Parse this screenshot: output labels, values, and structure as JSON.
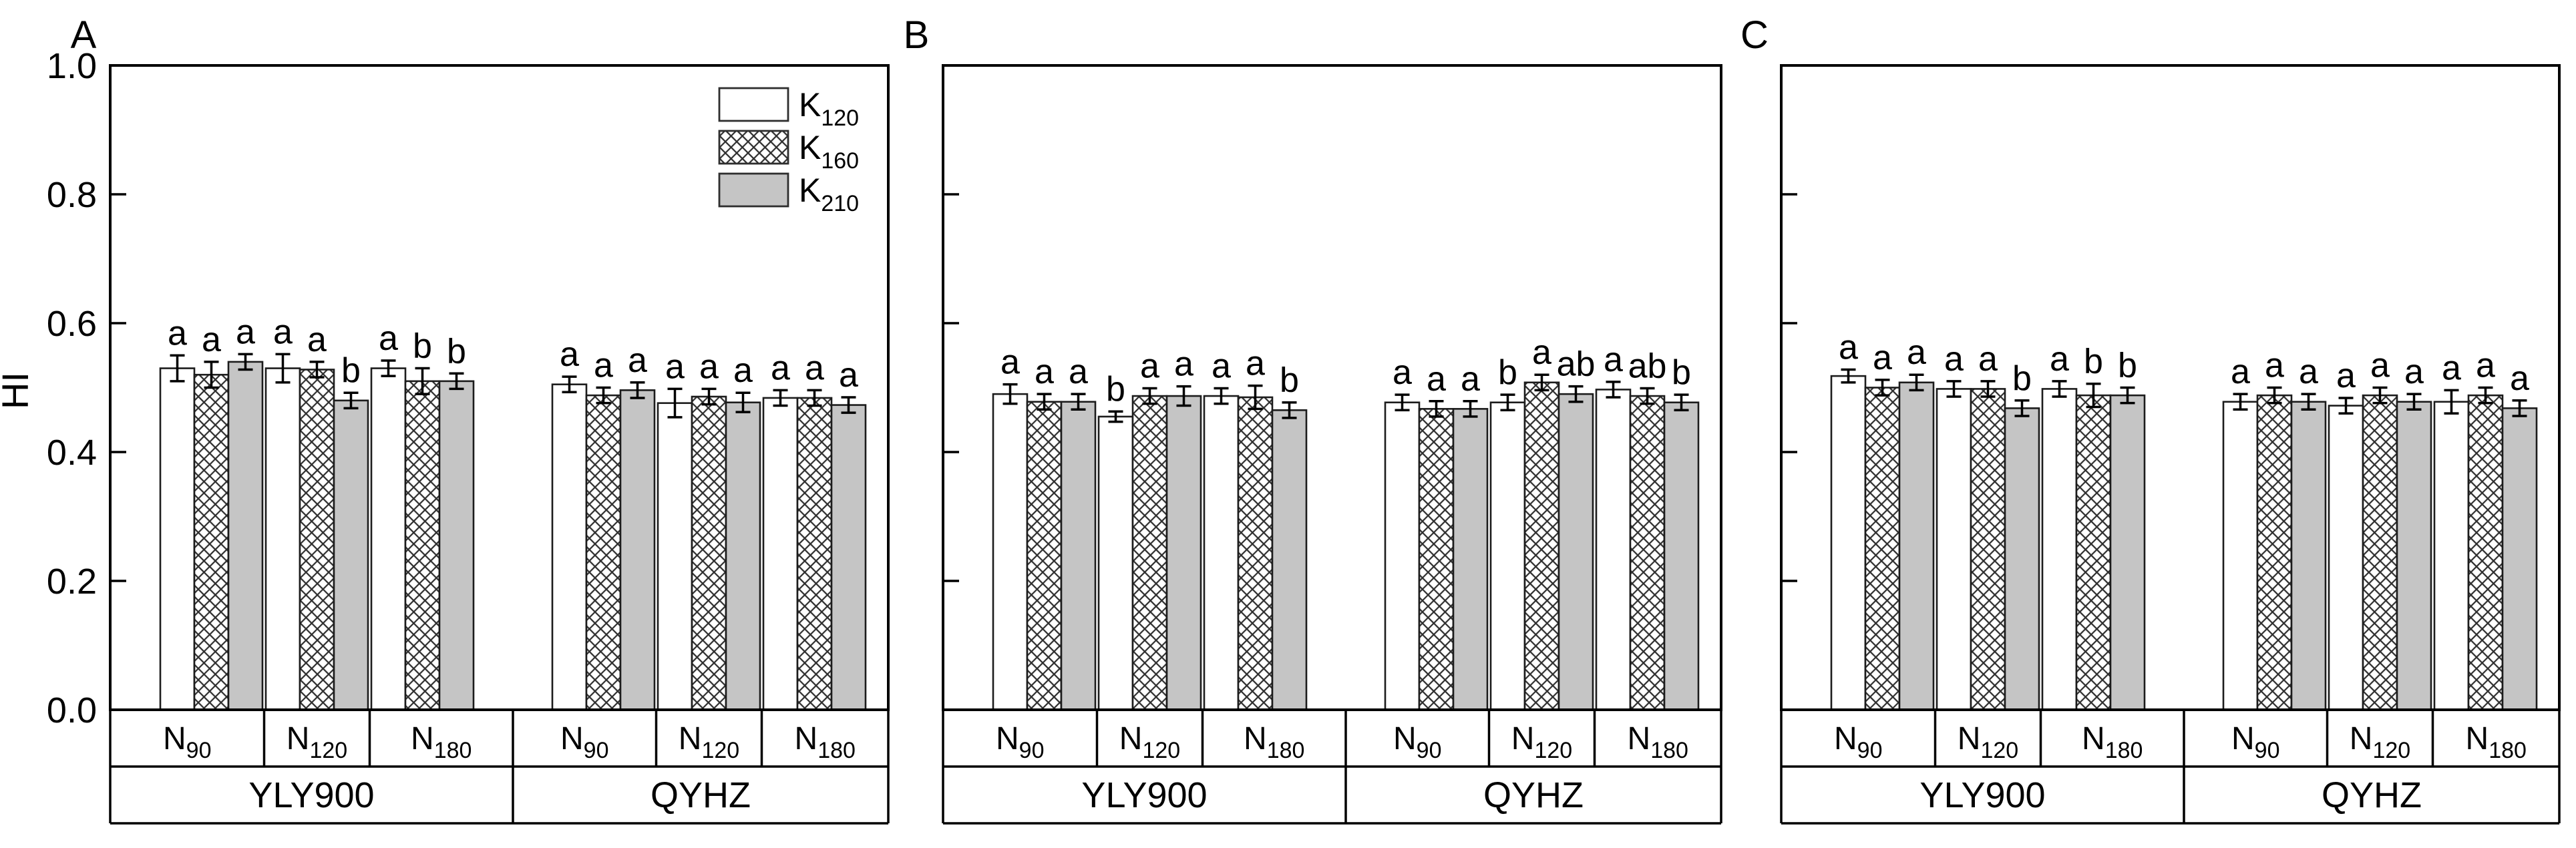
{
  "figure_title": "",
  "accent_colors": {
    "bar_gray": "#c5c5c5",
    "bar_white": "#ffffff",
    "line_black": "#000000",
    "outline_dark": "#1c1c1c",
    "hatch_line": "#2e2e2e"
  },
  "chart_data": {
    "type": "bar",
    "ylabel": "HI",
    "ylim": [
      0.0,
      1.0
    ],
    "ytick_labels": [
      "0.0",
      "0.2",
      "0.4",
      "0.6",
      "0.8",
      "1.0"
    ],
    "grid": false,
    "legend_position": "inside-top-right-of-panel-A",
    "series": [
      {
        "name": "K120",
        "label_base": "K",
        "label_sub": "120",
        "fill": "white"
      },
      {
        "name": "K160",
        "label_base": "K",
        "label_sub": "160",
        "fill": "crosshatch"
      },
      {
        "name": "K210",
        "label_base": "K",
        "label_sub": "210",
        "fill": "gray"
      }
    ],
    "n_level_labels": [
      {
        "base": "N",
        "sub": "90"
      },
      {
        "base": "N",
        "sub": "120"
      },
      {
        "base": "N",
        "sub": "180"
      }
    ],
    "cultivar_labels": [
      "YLY900",
      "QYHZ"
    ],
    "panels": [
      {
        "label": "A",
        "groups": [
          {
            "cultivar": "YLY900",
            "n": "N90",
            "values": [
              0.53,
              0.52,
              0.54
            ],
            "errors": [
              0.02,
              0.02,
              0.012
            ],
            "letters": [
              "a",
              "a",
              "a"
            ]
          },
          {
            "cultivar": "YLY900",
            "n": "N120",
            "values": [
              0.53,
              0.528,
              0.48
            ],
            "errors": [
              0.022,
              0.012,
              0.012
            ],
            "letters": [
              "a",
              "a",
              "b"
            ]
          },
          {
            "cultivar": "YLY900",
            "n": "N180",
            "values": [
              0.53,
              0.51,
              0.51
            ],
            "errors": [
              0.012,
              0.02,
              0.012
            ],
            "letters": [
              "a",
              "b",
              "b"
            ]
          },
          {
            "cultivar": "QYHZ",
            "n": "N90",
            "values": [
              0.505,
              0.488,
              0.496
            ],
            "errors": [
              0.012,
              0.012,
              0.012
            ],
            "letters": [
              "a",
              "a",
              "a"
            ]
          },
          {
            "cultivar": "QYHZ",
            "n": "N120",
            "values": [
              0.476,
              0.486,
              0.477
            ],
            "errors": [
              0.022,
              0.012,
              0.015
            ],
            "letters": [
              "a",
              "a",
              "a"
            ]
          },
          {
            "cultivar": "QYHZ",
            "n": "N180",
            "values": [
              0.484,
              0.484,
              0.473
            ],
            "errors": [
              0.012,
              0.012,
              0.012
            ],
            "letters": [
              "a",
              "a",
              "a"
            ]
          }
        ]
      },
      {
        "label": "B",
        "groups": [
          {
            "cultivar": "YLY900",
            "n": "N90",
            "values": [
              0.49,
              0.478,
              0.478
            ],
            "errors": [
              0.015,
              0.012,
              0.012
            ],
            "letters": [
              "a",
              "a",
              "a"
            ]
          },
          {
            "cultivar": "YLY900",
            "n": "N120",
            "values": [
              0.455,
              0.487,
              0.487
            ],
            "errors": [
              0.008,
              0.012,
              0.015
            ],
            "letters": [
              "b",
              "a",
              "a"
            ]
          },
          {
            "cultivar": "YLY900",
            "n": "N180",
            "values": [
              0.487,
              0.485,
              0.465
            ],
            "errors": [
              0.012,
              0.018,
              0.012
            ],
            "letters": [
              "a",
              "a",
              "b"
            ]
          },
          {
            "cultivar": "QYHZ",
            "n": "N90",
            "values": [
              0.477,
              0.467,
              0.467
            ],
            "errors": [
              0.012,
              0.012,
              0.012
            ],
            "letters": [
              "a",
              "a",
              "a"
            ]
          },
          {
            "cultivar": "QYHZ",
            "n": "N120",
            "values": [
              0.477,
              0.508,
              0.49
            ],
            "errors": [
              0.012,
              0.012,
              0.012
            ],
            "letters": [
              "b",
              "a",
              "ab"
            ]
          },
          {
            "cultivar": "QYHZ",
            "n": "N180",
            "values": [
              0.497,
              0.487,
              0.477
            ],
            "errors": [
              0.012,
              0.012,
              0.012
            ],
            "letters": [
              "a",
              "ab",
              "b"
            ]
          }
        ]
      },
      {
        "label": "C",
        "groups": [
          {
            "cultivar": "YLY900",
            "n": "N90",
            "values": [
              0.518,
              0.5,
              0.508
            ],
            "errors": [
              0.01,
              0.012,
              0.012
            ],
            "letters": [
              "a",
              "a",
              "a"
            ]
          },
          {
            "cultivar": "YLY900",
            "n": "N120",
            "values": [
              0.498,
              0.498,
              0.468
            ],
            "errors": [
              0.012,
              0.012,
              0.012
            ],
            "letters": [
              "a",
              "a",
              "b"
            ]
          },
          {
            "cultivar": "YLY900",
            "n": "N180",
            "values": [
              0.498,
              0.488,
              0.488
            ],
            "errors": [
              0.012,
              0.018,
              0.012
            ],
            "letters": [
              "a",
              "b",
              "b"
            ]
          },
          {
            "cultivar": "QYHZ",
            "n": "N90",
            "values": [
              0.478,
              0.488,
              0.478
            ],
            "errors": [
              0.012,
              0.012,
              0.012
            ],
            "letters": [
              "a",
              "a",
              "a"
            ]
          },
          {
            "cultivar": "QYHZ",
            "n": "N120",
            "values": [
              0.472,
              0.488,
              0.478
            ],
            "errors": [
              0.012,
              0.012,
              0.012
            ],
            "letters": [
              "a",
              "a",
              "a"
            ]
          },
          {
            "cultivar": "QYHZ",
            "n": "N180",
            "values": [
              0.478,
              0.488,
              0.468
            ],
            "errors": [
              0.018,
              0.012,
              0.012
            ],
            "letters": [
              "a",
              "a",
              "a"
            ]
          }
        ]
      }
    ]
  }
}
